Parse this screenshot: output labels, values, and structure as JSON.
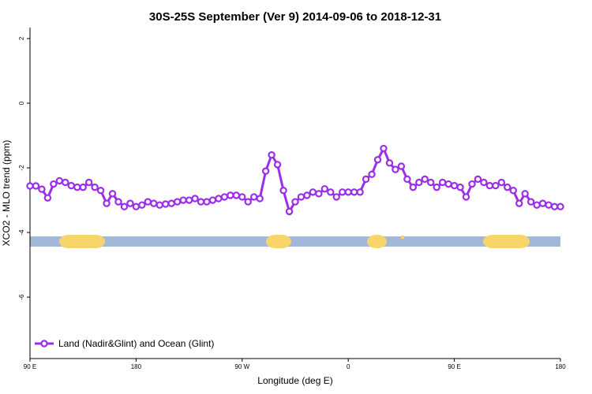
{
  "chart_data": {
    "type": "line",
    "title": "30S-25S September (Ver 9)   2014-09-06 to 2018-12-31",
    "x_label": "Longitude (deg E)",
    "y_label": "XCO2 - MLO trend (ppm)",
    "x": [
      90,
      95,
      100,
      105,
      110,
      115,
      120,
      125,
      130,
      135,
      140,
      145,
      150,
      155,
      160,
      165,
      170,
      175,
      180,
      185,
      190,
      195,
      200,
      205,
      210,
      215,
      220,
      225,
      230,
      235,
      240,
      245,
      250,
      255,
      260,
      265,
      270,
      275,
      280,
      285,
      290,
      295,
      300,
      305,
      310,
      315,
      320,
      325,
      330,
      335,
      340,
      345,
      350,
      355,
      360,
      365,
      370,
      375,
      380,
      385,
      390,
      395,
      400,
      405,
      410,
      415,
      420,
      425,
      430,
      435,
      440,
      445,
      450,
      455,
      460,
      465,
      470,
      475,
      480,
      485,
      490,
      495,
      500,
      505,
      510,
      515,
      520,
      525,
      530,
      535,
      540
    ],
    "series": [
      {
        "name": "Land (Nadir&Glint) and Ocean (Glint)",
        "color": "#9b2ee6",
        "values": [
          -2.56,
          -2.56,
          -2.66,
          -2.93,
          -2.5,
          -2.4,
          -2.45,
          -2.55,
          -2.6,
          -2.6,
          -2.45,
          -2.6,
          -2.7,
          -3.1,
          -2.8,
          -3.05,
          -3.2,
          -3.1,
          -3.2,
          -3.15,
          -3.05,
          -3.1,
          -3.15,
          -3.12,
          -3.1,
          -3.05,
          -3.0,
          -3.0,
          -2.95,
          -3.05,
          -3.05,
          -3.0,
          -2.95,
          -2.9,
          -2.85,
          -2.85,
          -2.9,
          -3.05,
          -2.9,
          -2.95,
          -2.1,
          -1.6,
          -1.9,
          -2.7,
          -3.35,
          -3.05,
          -2.9,
          -2.85,
          -2.75,
          -2.8,
          -2.65,
          -2.75,
          -2.9,
          -2.75,
          -2.75,
          -2.75,
          -2.75,
          -2.35,
          -2.2,
          -1.75,
          -1.4,
          -1.85,
          -2.05,
          -1.95,
          -2.35,
          -2.6,
          -2.45,
          -2.35,
          -2.45,
          -2.6,
          -2.45,
          -2.5,
          -2.55,
          -2.6,
          -2.9,
          -2.5,
          -2.35,
          -2.45,
          -2.55,
          -2.55,
          -2.45,
          -2.6,
          -2.7,
          -3.1,
          -2.8,
          -3.05,
          -3.15,
          -3.1,
          -3.15,
          -3.2,
          -3.2
        ]
      }
    ],
    "xlim": [
      90,
      540
    ],
    "xticks": [
      {
        "value": 90,
        "label": "90 E"
      },
      180,
      {
        "value": 270,
        "label": "90 W"
      },
      {
        "value": 360,
        "label": "0"
      },
      {
        "value": 450,
        "label": "90 E"
      },
      {
        "value": 540,
        "label": "180"
      }
    ],
    "ylim": [
      -7.9,
      2.34
    ],
    "yticks": [
      2,
      0,
      -2,
      -4,
      -6
    ],
    "legend": "bottom-left"
  }
}
